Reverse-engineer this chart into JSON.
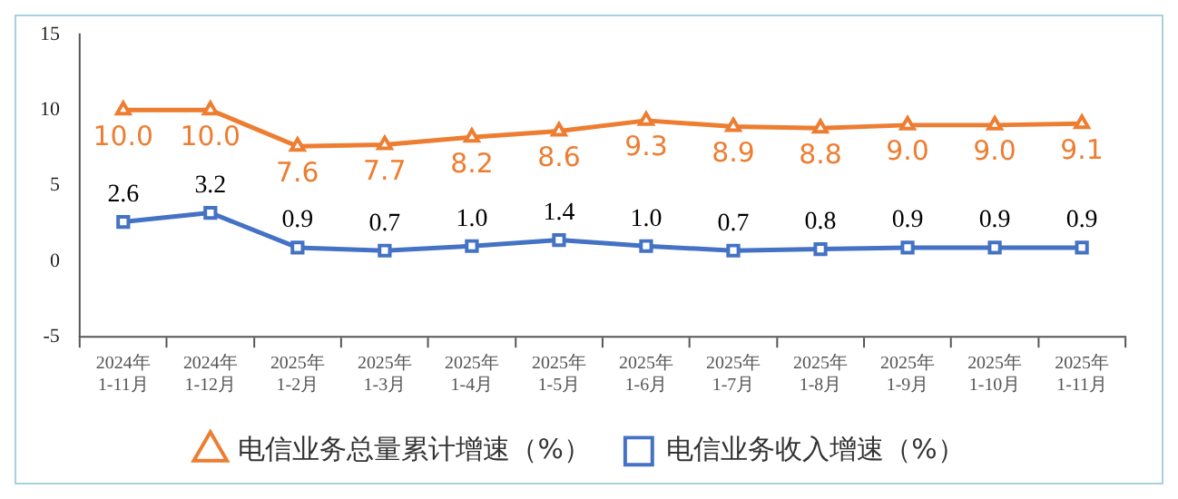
{
  "chart_data": {
    "type": "line",
    "categories": [
      "2024年 1-11月",
      "2024年 1-12月",
      "2025年 1-2月",
      "2025年 1-3月",
      "2025年 1-4月",
      "2025年 1-5月",
      "2025年 1-6月",
      "2025年 1-7月",
      "2025年 1-8月",
      "2025年 1-9月",
      "2025年 1-10月",
      "2025年 1-11月"
    ],
    "series": [
      {
        "name": "电信业务总量累计增速（%）",
        "color": "#ed7d31",
        "marker": "triangle",
        "values": [
          10.0,
          10.0,
          7.6,
          7.7,
          8.2,
          8.6,
          9.3,
          8.9,
          8.8,
          9.0,
          9.0,
          9.1
        ],
        "value_labels": [
          "10.0",
          "10.0",
          "7.6",
          "7.7",
          "8.2",
          "8.6",
          "9.3",
          "8.9",
          "8.8",
          "9.0",
          "9.0",
          "9.1"
        ]
      },
      {
        "name": "电信业务收入增速（%）",
        "color": "#4472c4",
        "marker": "square",
        "values": [
          2.6,
          3.2,
          0.9,
          0.7,
          1.0,
          1.4,
          1.0,
          0.7,
          0.8,
          0.9,
          0.9,
          0.9
        ],
        "value_labels": [
          "2.6",
          "3.2",
          "0.9",
          "0.7",
          "1.0",
          "1.4",
          "1.0",
          "0.7",
          "0.8",
          "0.9",
          "0.9",
          "0.9"
        ]
      }
    ],
    "ylim": [
      -5,
      15
    ],
    "yticks": [
      -5,
      0,
      5,
      10,
      15
    ],
    "grid": false,
    "legend": "bottom"
  }
}
